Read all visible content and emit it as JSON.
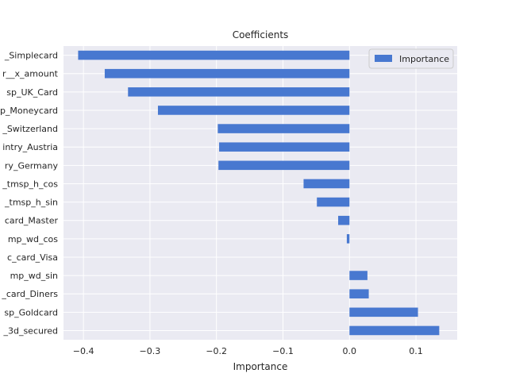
{
  "chart_data": {
    "type": "bar",
    "orientation": "horizontal",
    "title": "Coefficients",
    "xlabel": "Importance",
    "ylabel": "",
    "categories": [
      "_3d_secured",
      "sp_Goldcard",
      "_card_Diners",
      "mp_wd_sin",
      "c_card_Visa",
      "mp_wd_cos",
      "card_Master",
      "_tmsp_h_sin",
      "_tmsp_h_cos",
      "ry_Germany",
      "intry_Austria",
      "_Switzerland",
      "p_Moneycard",
      "sp_UK_Card",
      "r__x_amount",
      "_Simplecard"
    ],
    "series": [
      {
        "name": "Importance",
        "values": [
          0.135,
          0.103,
          0.029,
          0.027,
          0.0,
          -0.004,
          -0.017,
          -0.049,
          -0.069,
          -0.197,
          -0.196,
          -0.198,
          -0.288,
          -0.333,
          -0.368,
          -0.408
        ]
      }
    ],
    "xticks": [
      -0.4,
      -0.3,
      -0.2,
      -0.1,
      0.0,
      0.1
    ],
    "xtick_labels": [
      "−0.4",
      "−0.3",
      "−0.2",
      "−0.1",
      "0.0",
      "0.1"
    ],
    "xlim": [
      -0.43,
      0.162
    ],
    "grid": true,
    "legend": "top-right",
    "colors": {
      "bar": "#4878d0",
      "plot_background": "#eaeaf2",
      "grid": "#ffffff"
    }
  }
}
